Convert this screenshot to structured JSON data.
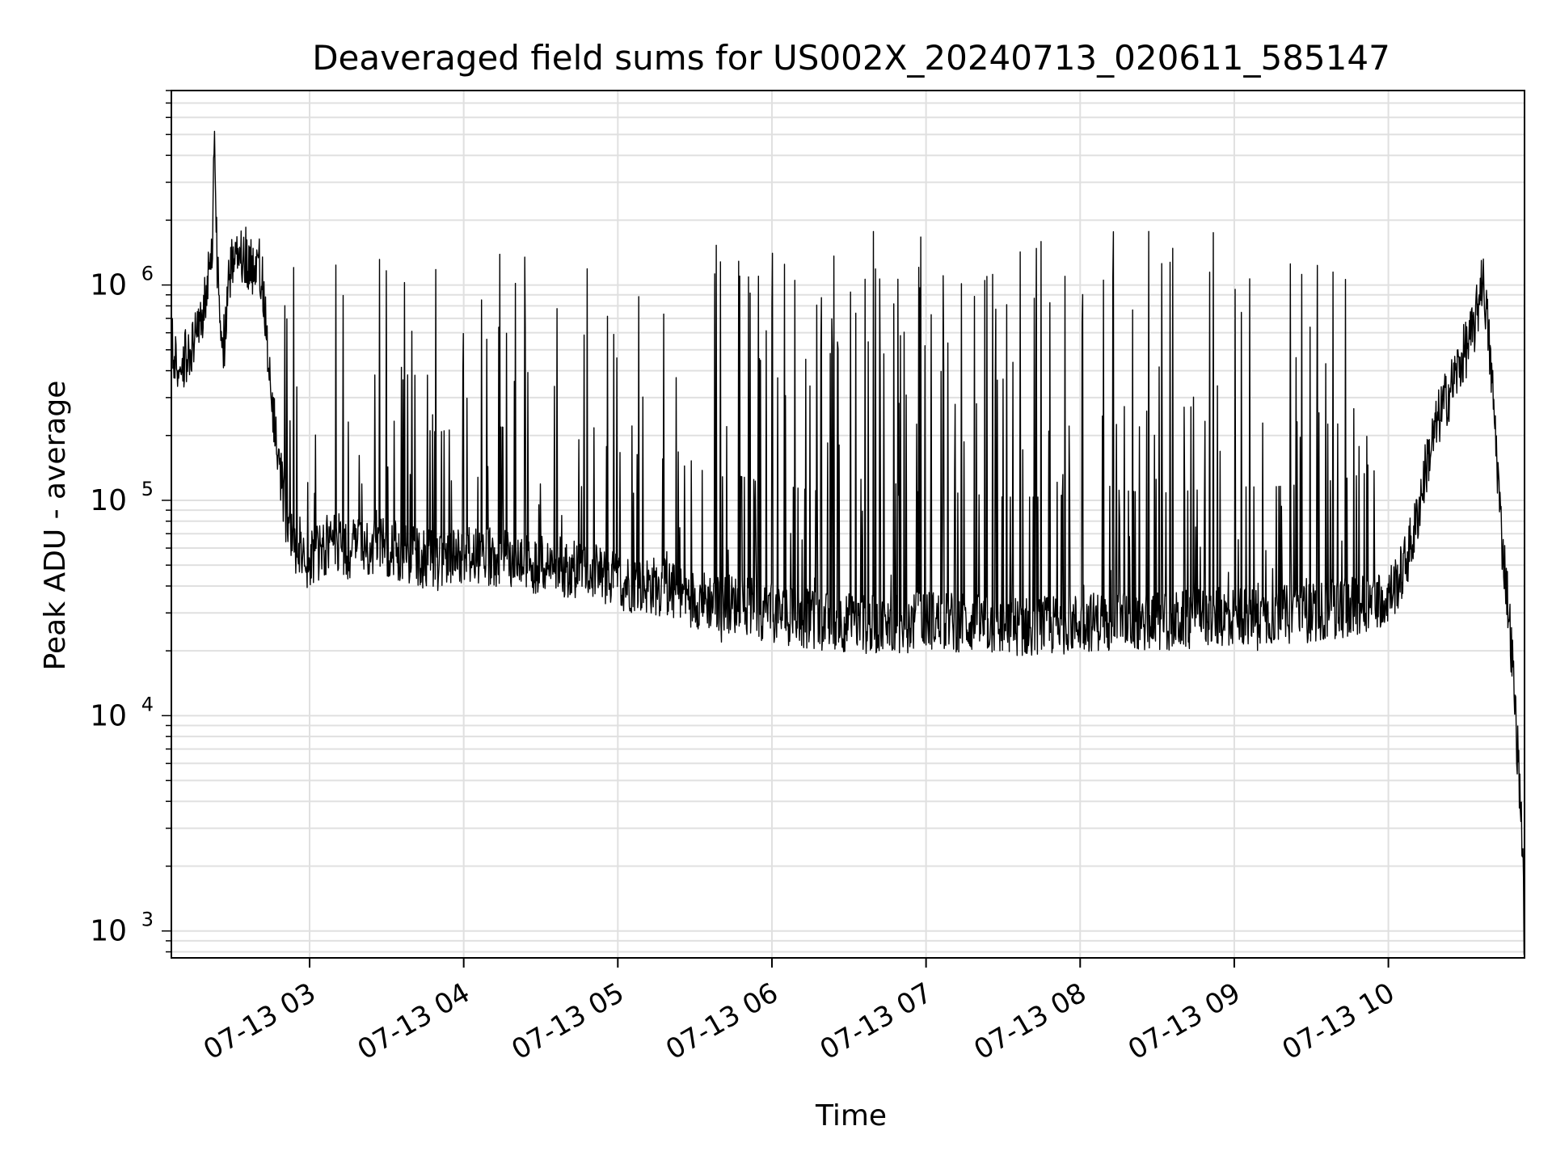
{
  "chart_data": {
    "type": "line",
    "title": "Deaveraged field sums for US002X_20240713_020611_585147",
    "xlabel": "Time",
    "ylabel": "Peak ADU - average",
    "yscale": "log",
    "ylim": [
      750,
      8000000
    ],
    "xlim": [
      "2024-07-13T02:06:11",
      "2024-07-13T10:53:00"
    ],
    "grid": true,
    "line_color": "#000000",
    "grid_color": "#e0e0e0",
    "x_ticks": [
      {
        "value": "2024-07-13T03:00:00",
        "label": "07-13 03"
      },
      {
        "value": "2024-07-13T04:00:00",
        "label": "07-13 04"
      },
      {
        "value": "2024-07-13T05:00:00",
        "label": "07-13 05"
      },
      {
        "value": "2024-07-13T06:00:00",
        "label": "07-13 06"
      },
      {
        "value": "2024-07-13T07:00:00",
        "label": "07-13 07"
      },
      {
        "value": "2024-07-13T08:00:00",
        "label": "07-13 08"
      },
      {
        "value": "2024-07-13T09:00:00",
        "label": "07-13 09"
      },
      {
        "value": "2024-07-13T10:00:00",
        "label": "07-13 10"
      }
    ],
    "y_ticks": [
      {
        "value": 1000,
        "base": "10",
        "exp": "3"
      },
      {
        "value": 10000,
        "base": "10",
        "exp": "4"
      },
      {
        "value": 100000,
        "base": "10",
        "exp": "5"
      },
      {
        "value": 1000000,
        "base": "10",
        "exp": "6"
      }
    ],
    "series": [
      {
        "x": [
          "2024-07-13T02:06:11",
          "2024-07-13T02:10:00",
          "2024-07-13T02:14:00",
          "2024-07-13T02:18:00",
          "2024-07-13T02:20:00",
          "2024-07-13T02:21:00",
          "2024-07-13T02:22:00",
          "2024-07-13T02:23:00",
          "2024-07-13T02:24:00",
          "2024-07-13T02:26:00",
          "2024-07-13T02:27:00",
          "2024-07-13T02:28:00",
          "2024-07-13T02:30:00",
          "2024-07-13T02:32:00",
          "2024-07-13T02:35:00",
          "2024-07-13T02:38:00",
          "2024-07-13T02:40:00",
          "2024-07-13T02:42:00",
          "2024-07-13T02:44:00",
          "2024-07-13T02:46:00",
          "2024-07-13T02:48:00",
          "2024-07-13T02:50:00",
          "2024-07-13T02:52:00",
          "2024-07-13T02:54:00",
          "2024-07-13T02:56:00",
          "2024-07-13T02:58:00",
          "2024-07-13T03:00:00",
          "2024-07-13T03:05:00",
          "2024-07-13T03:10:00",
          "2024-07-13T03:15:00",
          "2024-07-13T03:20:00",
          "2024-07-13T03:30:00",
          "2024-07-13T03:40:00",
          "2024-07-13T03:50:00",
          "2024-07-13T04:00:00",
          "2024-07-13T04:15:00",
          "2024-07-13T04:30:00",
          "2024-07-13T04:45:00",
          "2024-07-13T05:00:00",
          "2024-07-13T05:15:00",
          "2024-07-13T05:30:00",
          "2024-07-13T05:45:00",
          "2024-07-13T06:00:00",
          "2024-07-13T06:15:00",
          "2024-07-13T06:30:00",
          "2024-07-13T06:45:00",
          "2024-07-13T07:00:00",
          "2024-07-13T07:15:00",
          "2024-07-13T07:30:00",
          "2024-07-13T07:45:00",
          "2024-07-13T08:00:00",
          "2024-07-13T08:15:00",
          "2024-07-13T08:30:00",
          "2024-07-13T08:45:00",
          "2024-07-13T09:00:00",
          "2024-07-13T09:15:00",
          "2024-07-13T09:30:00",
          "2024-07-13T09:45:00",
          "2024-07-13T10:00:00",
          "2024-07-13T10:05:00",
          "2024-07-13T10:10:00",
          "2024-07-13T10:15:00",
          "2024-07-13T10:20:00",
          "2024-07-13T10:25:00",
          "2024-07-13T10:30:00",
          "2024-07-13T10:33:00",
          "2024-07-13T10:35:00",
          "2024-07-13T10:36:00",
          "2024-07-13T10:37:00",
          "2024-07-13T10:38:00",
          "2024-07-13T10:40:00",
          "2024-07-13T10:42:00",
          "2024-07-13T10:44:00",
          "2024-07-13T10:46:00",
          "2024-07-13T10:48:00",
          "2024-07-13T10:50:00",
          "2024-07-13T10:52:00",
          "2024-07-13T10:53:00"
        ],
        "y": [
          520000,
          420000,
          520000,
          620000,
          1000000,
          1200000,
          1300000,
          5200000,
          1200000,
          600000,
          500000,
          1100000,
          1200000,
          1300000,
          1400000,
          1200000,
          1300000,
          1000000,
          400000,
          250000,
          150000,
          100000,
          70000,
          60000,
          55000,
          50000,
          55000,
          60000,
          65000,
          58000,
          60000,
          60000,
          55000,
          52000,
          55000,
          55000,
          50000,
          48000,
          42000,
          40000,
          35000,
          33000,
          30000,
          28000,
          27000,
          26000,
          28000,
          27000,
          26000,
          26000,
          27000,
          28000,
          27000,
          28000,
          29000,
          29000,
          30000,
          32000,
          36000,
          45000,
          70000,
          150000,
          250000,
          350000,
          500000,
          600000,
          800000,
          1100000,
          1000000,
          800000,
          400000,
          180000,
          70000,
          40000,
          20000,
          8000,
          3000,
          800
        ]
      }
    ],
    "spikes": {
      "comment_window": "vertical black oscillations across the observation",
      "segments": [
        {
          "from": "2024-07-13T02:50:00",
          "to": "2024-07-13T05:00:00",
          "count": 70,
          "low": 40000,
          "high": 600000,
          "peak": 1400000
        },
        {
          "from": "2024-07-13T05:00:00",
          "to": "2024-07-13T05:35:00",
          "count": 14,
          "low": 28000,
          "high": 200000,
          "peak": 900000
        },
        {
          "from": "2024-07-13T05:35:00",
          "to": "2024-07-13T09:45:00",
          "count": 220,
          "low": 20000,
          "high": 900000,
          "peak": 1300000
        },
        {
          "from": "2024-07-13T09:45:00",
          "to": "2024-07-13T10:00:00",
          "count": 10,
          "low": 25000,
          "high": 150000,
          "peak": 300000
        }
      ]
    }
  }
}
